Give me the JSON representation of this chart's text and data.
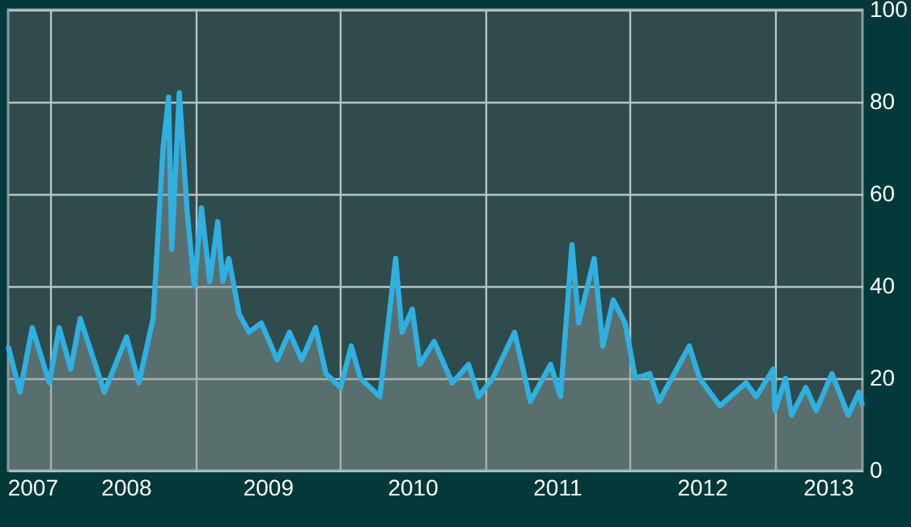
{
  "chart_data": {
    "type": "area",
    "x": [
      "2007-09-15",
      "2007-10-15",
      "2007-11-15",
      "2007-12-28",
      "2008-01-22",
      "2008-02-20",
      "2008-03-15",
      "2008-05-15",
      "2008-07-10",
      "2008-08-10",
      "2008-09-15",
      "2008-10-10",
      "2008-10-24",
      "2008-11-01",
      "2008-11-20",
      "2008-12-10",
      "2008-12-28",
      "2009-01-15",
      "2009-02-05",
      "2009-02-25",
      "2009-03-10",
      "2009-03-25",
      "2009-04-20",
      "2009-05-15",
      "2009-06-15",
      "2009-07-25",
      "2009-08-25",
      "2009-09-25",
      "2009-10-30",
      "2009-11-25",
      "2010-01-01",
      "2010-01-28",
      "2010-02-20",
      "2010-04-10",
      "2010-05-20",
      "2010-06-05",
      "2010-07-01",
      "2010-07-20",
      "2010-08-25",
      "2010-10-10",
      "2010-11-20",
      "2010-12-15",
      "2011-01-20",
      "2011-03-16",
      "2011-04-25",
      "2011-06-15",
      "2011-07-10",
      "2011-08-08",
      "2011-08-25",
      "2011-10-03",
      "2011-10-25",
      "2011-11-20",
      "2011-12-20",
      "2012-01-15",
      "2012-02-20",
      "2012-03-15",
      "2012-05-30",
      "2012-06-25",
      "2012-08-15",
      "2012-10-20",
      "2012-11-15",
      "2012-12-28",
      "2013-01-01",
      "2013-01-28",
      "2013-02-12",
      "2013-03-20",
      "2013-04-15",
      "2013-05-25",
      "2013-07-05",
      "2013-08-01",
      "2013-08-10"
    ],
    "series": [
      {
        "color": "#2fb0e0",
        "values": [
          27,
          17,
          31,
          19,
          31,
          22,
          33,
          17,
          29,
          19,
          33,
          70,
          81,
          48,
          82,
          56,
          40,
          57,
          41,
          54,
          41,
          46,
          34,
          30,
          32,
          24,
          30,
          24,
          31,
          21,
          18,
          27,
          20,
          16,
          46,
          30,
          35,
          23,
          28,
          19,
          23,
          16,
          20,
          30,
          15,
          23,
          16,
          49,
          32,
          46,
          27,
          37,
          32,
          20,
          21,
          15,
          27,
          20,
          14,
          19,
          16,
          22,
          13,
          20,
          12,
          18,
          13,
          21,
          12,
          17,
          14
        ]
      }
    ],
    "xlim": [
      "2007-09-15",
      "2013-08-10"
    ],
    "xticks": [
      {
        "value": "2007-11-15",
        "label": "2007"
      },
      {
        "value": "2008-01-01",
        "label": null
      },
      {
        "value": "2008-07-08",
        "label": "2008"
      },
      {
        "value": "2009-01-01",
        "label": null
      },
      {
        "value": "2009-07-01",
        "label": "2009"
      },
      {
        "value": "2010-01-01",
        "label": null
      },
      {
        "value": "2010-07-01",
        "label": "2010"
      },
      {
        "value": "2011-01-01",
        "label": null
      },
      {
        "value": "2011-07-01",
        "label": "2011"
      },
      {
        "value": "2012-01-01",
        "label": null
      },
      {
        "value": "2012-07-01",
        "label": "2012"
      },
      {
        "value": "2013-01-01",
        "label": null
      },
      {
        "value": "2013-05-15",
        "label": "2013"
      }
    ],
    "ylim": [
      0,
      100
    ],
    "yticks": [
      0,
      20,
      40,
      60,
      80,
      100
    ],
    "grid": true
  }
}
